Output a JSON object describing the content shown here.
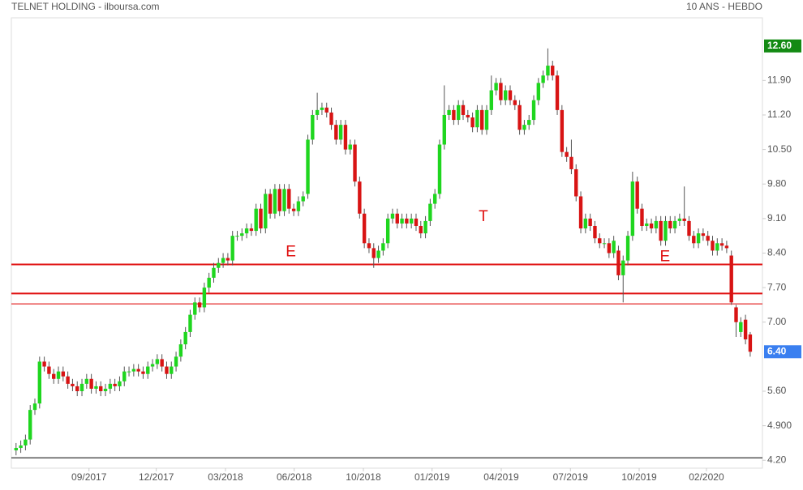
{
  "chart_data": {
    "type": "candlestick",
    "title": "TELNET HOLDING - ilboursa.com",
    "subtitle": "10 ANS - HEBDO",
    "up_color": "#1fd61f",
    "down_color": "#d81414",
    "open": [
      4.4,
      4.45,
      4.5,
      4.62,
      5.22,
      5.35,
      6.2,
      6.1,
      5.95,
      5.85,
      6.0,
      5.9,
      5.75,
      5.7,
      5.6,
      5.75,
      5.85,
      5.65,
      5.7,
      5.6,
      5.65,
      5.75,
      5.7,
      5.8,
      6.0,
      6.0,
      6.05,
      6.0,
      5.95,
      6.1,
      6.15,
      6.25,
      6.1,
      5.95,
      6.1,
      6.3,
      6.55,
      6.8,
      7.15,
      7.4,
      7.3,
      7.7,
      7.9,
      8.1,
      8.2,
      8.3,
      8.25,
      8.75,
      8.75,
      8.8,
      8.9,
      8.85,
      9.3,
      8.9,
      9.6,
      9.2,
      9.7,
      9.25,
      9.7,
      9.3,
      9.25,
      9.45,
      9.6,
      10.7,
      11.2,
      11.3,
      11.35,
      11.25,
      11.0,
      10.7,
      11.0,
      10.5,
      10.6,
      9.85,
      9.2,
      8.6,
      8.5,
      8.3,
      8.45,
      8.6,
      9.1,
      9.2,
      9.0,
      9.1,
      9.0,
      9.1,
      8.95,
      8.8,
      9.05,
      9.4,
      9.6,
      10.6,
      11.2,
      11.3,
      11.1,
      11.4,
      11.2,
      11.15,
      10.95,
      11.3,
      10.9,
      11.3,
      11.7,
      11.85,
      11.5,
      11.7,
      11.5,
      11.4,
      10.9,
      11.0,
      11.1,
      11.5,
      11.85,
      12.0,
      12.2,
      12.0,
      11.3,
      10.45,
      10.35,
      10.1,
      9.55,
      8.9,
      9.1,
      8.95,
      8.7,
      8.6,
      8.6,
      8.4,
      8.45,
      7.95,
      8.25,
      8.75,
      9.85,
      9.3,
      8.95,
      9.0,
      8.9,
      9.05,
      8.65,
      9.05,
      8.9,
      9.05,
      9.1,
      9.05,
      8.75,
      8.6,
      8.8,
      8.75,
      8.65,
      8.45,
      8.6,
      8.55,
      8.35,
      7.3,
      6.8,
      7.05,
      6.75
    ],
    "high": [
      4.55,
      4.6,
      4.72,
      5.32,
      5.45,
      6.3,
      6.3,
      6.2,
      6.05,
      6.1,
      6.1,
      6.0,
      5.85,
      5.8,
      5.85,
      5.95,
      5.95,
      5.8,
      5.8,
      5.75,
      5.85,
      5.85,
      5.9,
      6.1,
      6.1,
      6.15,
      6.15,
      6.1,
      6.2,
      6.25,
      6.35,
      6.35,
      6.2,
      6.2,
      6.4,
      6.65,
      6.9,
      7.25,
      7.5,
      7.5,
      7.8,
      8.0,
      8.2,
      8.3,
      8.4,
      8.4,
      8.85,
      8.85,
      8.9,
      9.0,
      9.0,
      9.4,
      9.4,
      9.7,
      9.7,
      9.8,
      9.8,
      9.8,
      9.8,
      9.4,
      9.55,
      9.65,
      10.8,
      11.3,
      11.65,
      11.45,
      11.45,
      11.35,
      11.1,
      11.1,
      11.1,
      10.7,
      10.7,
      9.95,
      9.3,
      8.7,
      8.6,
      8.55,
      8.7,
      9.2,
      9.3,
      9.3,
      9.2,
      9.2,
      9.2,
      9.2,
      9.05,
      9.15,
      9.5,
      9.7,
      10.7,
      11.8,
      11.4,
      11.4,
      11.5,
      11.5,
      11.3,
      11.25,
      11.4,
      11.4,
      11.4,
      12.0,
      11.95,
      11.95,
      11.8,
      11.8,
      11.6,
      11.5,
      11.1,
      11.2,
      11.6,
      11.95,
      12.1,
      12.55,
      12.3,
      12.1,
      11.4,
      10.55,
      10.7,
      10.2,
      9.65,
      9.2,
      9.2,
      9.05,
      8.8,
      8.7,
      8.7,
      8.75,
      8.55,
      8.35,
      8.85,
      10.05,
      9.95,
      9.4,
      9.1,
      9.1,
      9.15,
      9.15,
      9.15,
      9.15,
      9.15,
      9.2,
      9.75,
      9.15,
      8.85,
      8.9,
      8.9,
      8.85,
      8.75,
      8.7,
      8.7,
      8.65,
      8.45,
      7.35,
      7.1,
      7.15,
      6.8
    ],
    "low": [
      4.3,
      4.35,
      4.4,
      4.52,
      5.12,
      5.25,
      6.0,
      5.85,
      5.75,
      5.75,
      5.8,
      5.65,
      5.6,
      5.5,
      5.5,
      5.65,
      5.55,
      5.55,
      5.5,
      5.5,
      5.55,
      5.6,
      5.6,
      5.7,
      5.9,
      5.9,
      5.9,
      5.85,
      5.85,
      6.0,
      6.05,
      6.0,
      5.85,
      5.85,
      6.0,
      6.2,
      6.45,
      6.7,
      7.05,
      7.2,
      7.2,
      7.6,
      7.8,
      8.0,
      8.1,
      8.15,
      8.15,
      8.65,
      8.65,
      8.7,
      8.75,
      8.75,
      8.8,
      8.8,
      9.1,
      9.1,
      9.15,
      9.15,
      9.2,
      9.15,
      9.15,
      9.35,
      9.5,
      10.6,
      11.1,
      11.2,
      11.15,
      10.9,
      10.6,
      10.6,
      10.4,
      10.4,
      9.75,
      9.1,
      8.5,
      8.4,
      8.1,
      8.2,
      8.35,
      8.5,
      9.0,
      8.9,
      8.9,
      8.9,
      8.9,
      8.85,
      8.7,
      8.7,
      8.95,
      9.3,
      9.5,
      10.5,
      11.1,
      11.0,
      11.0,
      11.1,
      11.05,
      10.85,
      10.85,
      10.8,
      10.8,
      11.2,
      11.6,
      11.4,
      11.4,
      11.4,
      11.3,
      10.8,
      10.8,
      10.9,
      11.0,
      11.4,
      11.75,
      11.9,
      11.9,
      11.2,
      10.35,
      10.25,
      10.0,
      9.45,
      8.8,
      8.8,
      8.85,
      8.6,
      8.5,
      8.5,
      8.3,
      8.3,
      7.85,
      7.4,
      8.15,
      8.65,
      9.2,
      8.85,
      8.85,
      8.8,
      8.8,
      8.55,
      8.55,
      8.8,
      8.8,
      8.95,
      8.95,
      8.65,
      8.5,
      8.5,
      8.65,
      8.55,
      8.35,
      8.35,
      8.45,
      8.4,
      7.35,
      6.7,
      6.7,
      6.55,
      6.3
    ],
    "close": [
      4.45,
      4.5,
      4.62,
      5.22,
      5.35,
      6.2,
      6.1,
      5.95,
      5.85,
      6.0,
      5.9,
      5.75,
      5.7,
      5.6,
      5.75,
      5.85,
      5.65,
      5.7,
      5.6,
      5.65,
      5.75,
      5.7,
      5.8,
      6.0,
      6.0,
      6.05,
      6.0,
      5.95,
      6.1,
      6.15,
      6.25,
      6.1,
      5.95,
      6.1,
      6.3,
      6.55,
      6.8,
      7.15,
      7.4,
      7.3,
      7.7,
      7.9,
      8.1,
      8.2,
      8.3,
      8.25,
      8.75,
      8.75,
      8.8,
      8.9,
      8.85,
      9.3,
      8.9,
      9.6,
      9.2,
      9.7,
      9.25,
      9.7,
      9.3,
      9.25,
      9.45,
      9.55,
      10.7,
      11.2,
      11.3,
      11.35,
      11.25,
      11.0,
      10.7,
      11.0,
      10.5,
      10.6,
      9.85,
      9.2,
      8.6,
      8.5,
      8.3,
      8.45,
      8.6,
      9.1,
      9.2,
      9.0,
      9.1,
      9.0,
      9.1,
      8.95,
      8.8,
      9.05,
      9.4,
      9.6,
      10.6,
      11.2,
      11.3,
      11.1,
      11.4,
      11.2,
      11.15,
      10.95,
      11.3,
      10.9,
      11.3,
      11.7,
      11.85,
      11.5,
      11.7,
      11.5,
      11.4,
      10.9,
      11.0,
      11.1,
      11.5,
      11.85,
      12.0,
      12.2,
      12.0,
      11.3,
      10.45,
      10.35,
      10.1,
      9.55,
      8.9,
      9.1,
      8.95,
      8.7,
      8.6,
      8.6,
      8.4,
      8.65,
      7.95,
      8.25,
      8.75,
      9.85,
      9.3,
      8.95,
      9.0,
      8.9,
      9.05,
      8.65,
      9.05,
      8.9,
      9.05,
      9.1,
      9.05,
      8.75,
      8.6,
      8.8,
      8.75,
      8.65,
      8.45,
      8.6,
      8.55,
      8.5,
      7.4,
      7.0,
      7.0,
      6.65,
      6.4
    ],
    "xlim": [
      -1,
      158.6
    ],
    "ylim": [
      4.04,
      13.17
    ],
    "xticks": [
      {
        "value": 15.5,
        "label": "09/2017"
      },
      {
        "value": 29.8,
        "label": "12/2017"
      },
      {
        "value": 44.5,
        "label": "03/2018"
      },
      {
        "value": 59.1,
        "label": "06/2018"
      },
      {
        "value": 73.8,
        "label": "10/2018"
      },
      {
        "value": 88.4,
        "label": "01/2019"
      },
      {
        "value": 103.1,
        "label": "04/2019"
      },
      {
        "value": 117.8,
        "label": "07/2019"
      },
      {
        "value": 132.4,
        "label": "10/2019"
      },
      {
        "value": 146.7,
        "label": "02/2020"
      }
    ],
    "yticks": [
      {
        "value": 11.9,
        "label": "11.90"
      },
      {
        "value": 11.2,
        "label": "11.20"
      },
      {
        "value": 10.5,
        "label": "10.50"
      },
      {
        "value": 9.8,
        "label": "9.80"
      },
      {
        "value": 9.1,
        "label": "9.10"
      },
      {
        "value": 8.4,
        "label": "8.40"
      },
      {
        "value": 7.7,
        "label": "7.70"
      },
      {
        "value": 7.0,
        "label": "7.00"
      },
      {
        "value": 5.6,
        "label": "5.60"
      },
      {
        "value": 4.9,
        "label": "4.900"
      },
      {
        "value": 4.2,
        "label": "4.20"
      }
    ],
    "price_markers": [
      {
        "value": 12.6,
        "label": "12.60",
        "color": "#138a13"
      },
      {
        "value": 6.4,
        "label": "6.40",
        "color": "#3a7ff0"
      }
    ],
    "hlines": [
      {
        "value": 8.17,
        "color": "#e01010",
        "width": 2
      },
      {
        "value": 7.58,
        "color": "#e01010",
        "width": 2
      },
      {
        "value": 7.37,
        "color": "#e01010",
        "width": 1.2
      },
      {
        "value": 4.25,
        "color": "#000000",
        "width": 1
      }
    ],
    "annotations": [
      {
        "text": "E",
        "x": 58.4,
        "y": 8.42
      },
      {
        "text": "T",
        "x": 99.3,
        "y": 9.13
      },
      {
        "text": "E",
        "x": 137.9,
        "y": 8.32
      }
    ]
  }
}
